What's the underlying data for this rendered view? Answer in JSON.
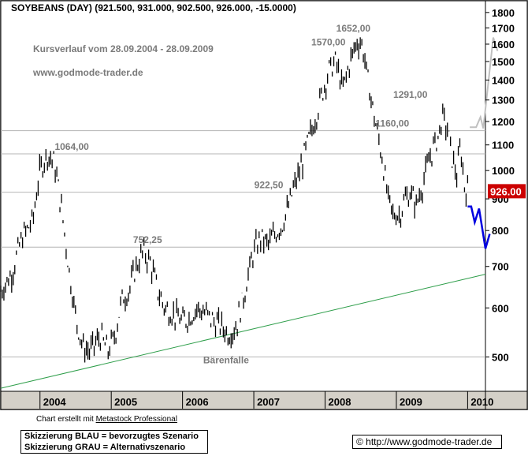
{
  "header": {
    "symbol": "SOYBEANS (DAY)",
    "ohlc": "(921.500, 931.000, 902.500, 926.000, -15.0000)"
  },
  "colors": {
    "price_bars": "#000000",
    "reference_lines": "#b4b4b4",
    "support_trendline": "#2e9e4a",
    "scenario_blue": "#0000e0",
    "scenario_grey": "#c0c0c0",
    "current_price_bg": "#cc0000"
  },
  "chart_data": {
    "type": "bar",
    "subtype": "ohlc-price-chart",
    "title": "Kursverlauf vom 28.09.2004 - 28.09.2009",
    "subtitle": "www.godmode-trader.de",
    "y_scale": "log",
    "ylim": [
      440,
      1880
    ],
    "y_ticks": [
      500,
      600,
      700,
      800,
      900,
      1000,
      1100,
      1200,
      1300,
      1400,
      1500,
      1600,
      1700,
      1800
    ],
    "x_ticks": [
      "2004",
      "2005",
      "2006",
      "2007",
      "2008",
      "2009",
      "2010"
    ],
    "x_range_years": [
      2003.45,
      2010.25
    ],
    "current_price": "926.00",
    "reference_lines": [
      {
        "value": 1064.0,
        "label": "1064,00"
      },
      {
        "value": 1160.0,
        "label": "1160,00"
      },
      {
        "value": 922.5,
        "label": "922,50"
      },
      {
        "value": 752.25,
        "label": "752,25"
      },
      {
        "value": 500,
        "label": ""
      }
    ],
    "price_annotations": [
      {
        "x": 2004.45,
        "y": 1064.0,
        "label": "1064,00"
      },
      {
        "x": 2005.55,
        "y": 752.25,
        "label": "752,25"
      },
      {
        "x": 2008.05,
        "y": 1570.0,
        "label": "1570,00"
      },
      {
        "x": 2008.4,
        "y": 1652.0,
        "label": "1652,00"
      },
      {
        "x": 2009.2,
        "y": 1291.0,
        "label": "1291,00"
      },
      {
        "x": 2008.95,
        "y": 1160.0,
        "label": "1160,00"
      },
      {
        "x": 2007.25,
        "y": 922.5,
        "label": "922,50"
      }
    ],
    "event_label": {
      "x": 2006.6,
      "y": 488,
      "label": "Bärenfalle"
    },
    "support_trendline": {
      "from": {
        "x": 2003.45,
        "y": 445
      },
      "to": {
        "x": 2010.25,
        "y": 680
      }
    },
    "series": [
      {
        "name": "",
        "points": [
          [
            2003.45,
            640
          ],
          [
            2003.6,
            680
          ],
          [
            2003.75,
            780
          ],
          [
            2003.9,
            830
          ],
          [
            2004.0,
            1000
          ],
          [
            2004.1,
            1064
          ],
          [
            2004.2,
            1030
          ],
          [
            2004.3,
            870
          ],
          [
            2004.4,
            700
          ],
          [
            2004.5,
            580
          ],
          [
            2004.6,
            520
          ],
          [
            2004.7,
            510
          ],
          [
            2004.85,
            540
          ],
          [
            2004.95,
            510
          ],
          [
            2005.05,
            540
          ],
          [
            2005.15,
            620
          ],
          [
            2005.25,
            640
          ],
          [
            2005.35,
            700
          ],
          [
            2005.45,
            740
          ],
          [
            2005.55,
            710
          ],
          [
            2005.65,
            640
          ],
          [
            2005.75,
            600
          ],
          [
            2005.85,
            590
          ],
          [
            2006.0,
            570
          ],
          [
            2006.1,
            580
          ],
          [
            2006.2,
            600
          ],
          [
            2006.3,
            590
          ],
          [
            2006.45,
            570
          ],
          [
            2006.55,
            560
          ],
          [
            2006.65,
            545
          ],
          [
            2006.75,
            560
          ],
          [
            2006.85,
            620
          ],
          [
            2006.95,
            700
          ],
          [
            2007.0,
            740
          ],
          [
            2007.1,
            780
          ],
          [
            2007.2,
            760
          ],
          [
            2007.3,
            790
          ],
          [
            2007.4,
            820
          ],
          [
            2007.5,
            880
          ],
          [
            2007.55,
            930
          ],
          [
            2007.65,
            1000
          ],
          [
            2007.75,
            1100
          ],
          [
            2007.85,
            1200
          ],
          [
            2007.95,
            1320
          ],
          [
            2008.05,
            1450
          ],
          [
            2008.15,
            1500
          ],
          [
            2008.25,
            1350
          ],
          [
            2008.35,
            1500
          ],
          [
            2008.45,
            1620
          ],
          [
            2008.52,
            1600
          ],
          [
            2008.6,
            1400
          ],
          [
            2008.7,
            1200
          ],
          [
            2008.8,
            1050
          ],
          [
            2008.88,
            900
          ],
          [
            2008.95,
            850
          ],
          [
            2009.05,
            850
          ],
          [
            2009.12,
            900
          ],
          [
            2009.2,
            920
          ],
          [
            2009.28,
            880
          ],
          [
            2009.38,
            960
          ],
          [
            2009.48,
            1060
          ],
          [
            2009.58,
            1130
          ],
          [
            2009.65,
            1220
          ],
          [
            2009.72,
            1160
          ],
          [
            2009.78,
            1050
          ],
          [
            2009.85,
            980
          ],
          [
            2009.9,
            1100
          ],
          [
            2009.95,
            950
          ],
          [
            2010.0,
            926
          ]
        ]
      }
    ],
    "scenario_blue": [
      [
        2010.0,
        875
      ],
      [
        2010.05,
        875
      ],
      [
        2010.1,
        825
      ],
      [
        2010.16,
        868
      ],
      [
        2010.25,
        748
      ],
      [
        2010.31,
        790
      ]
    ],
    "scenario_grey": [
      [
        2010.03,
        1175
      ],
      [
        2010.12,
        1175
      ],
      [
        2010.18,
        1220
      ],
      [
        2010.22,
        1170
      ],
      [
        2010.36,
        1640
      ],
      [
        2010.42,
        1560
      ]
    ]
  },
  "footer": {
    "credit_prefix": "Chart erstellt mit",
    "credit_link": "Metastock Professional",
    "legend_line1": "Skizzierung BLAU = bevorzugtes Szenario",
    "legend_line2": "Skizzierung GRAU = Alternativszenario",
    "copyright": "© http://www.godmode-trader.de"
  }
}
